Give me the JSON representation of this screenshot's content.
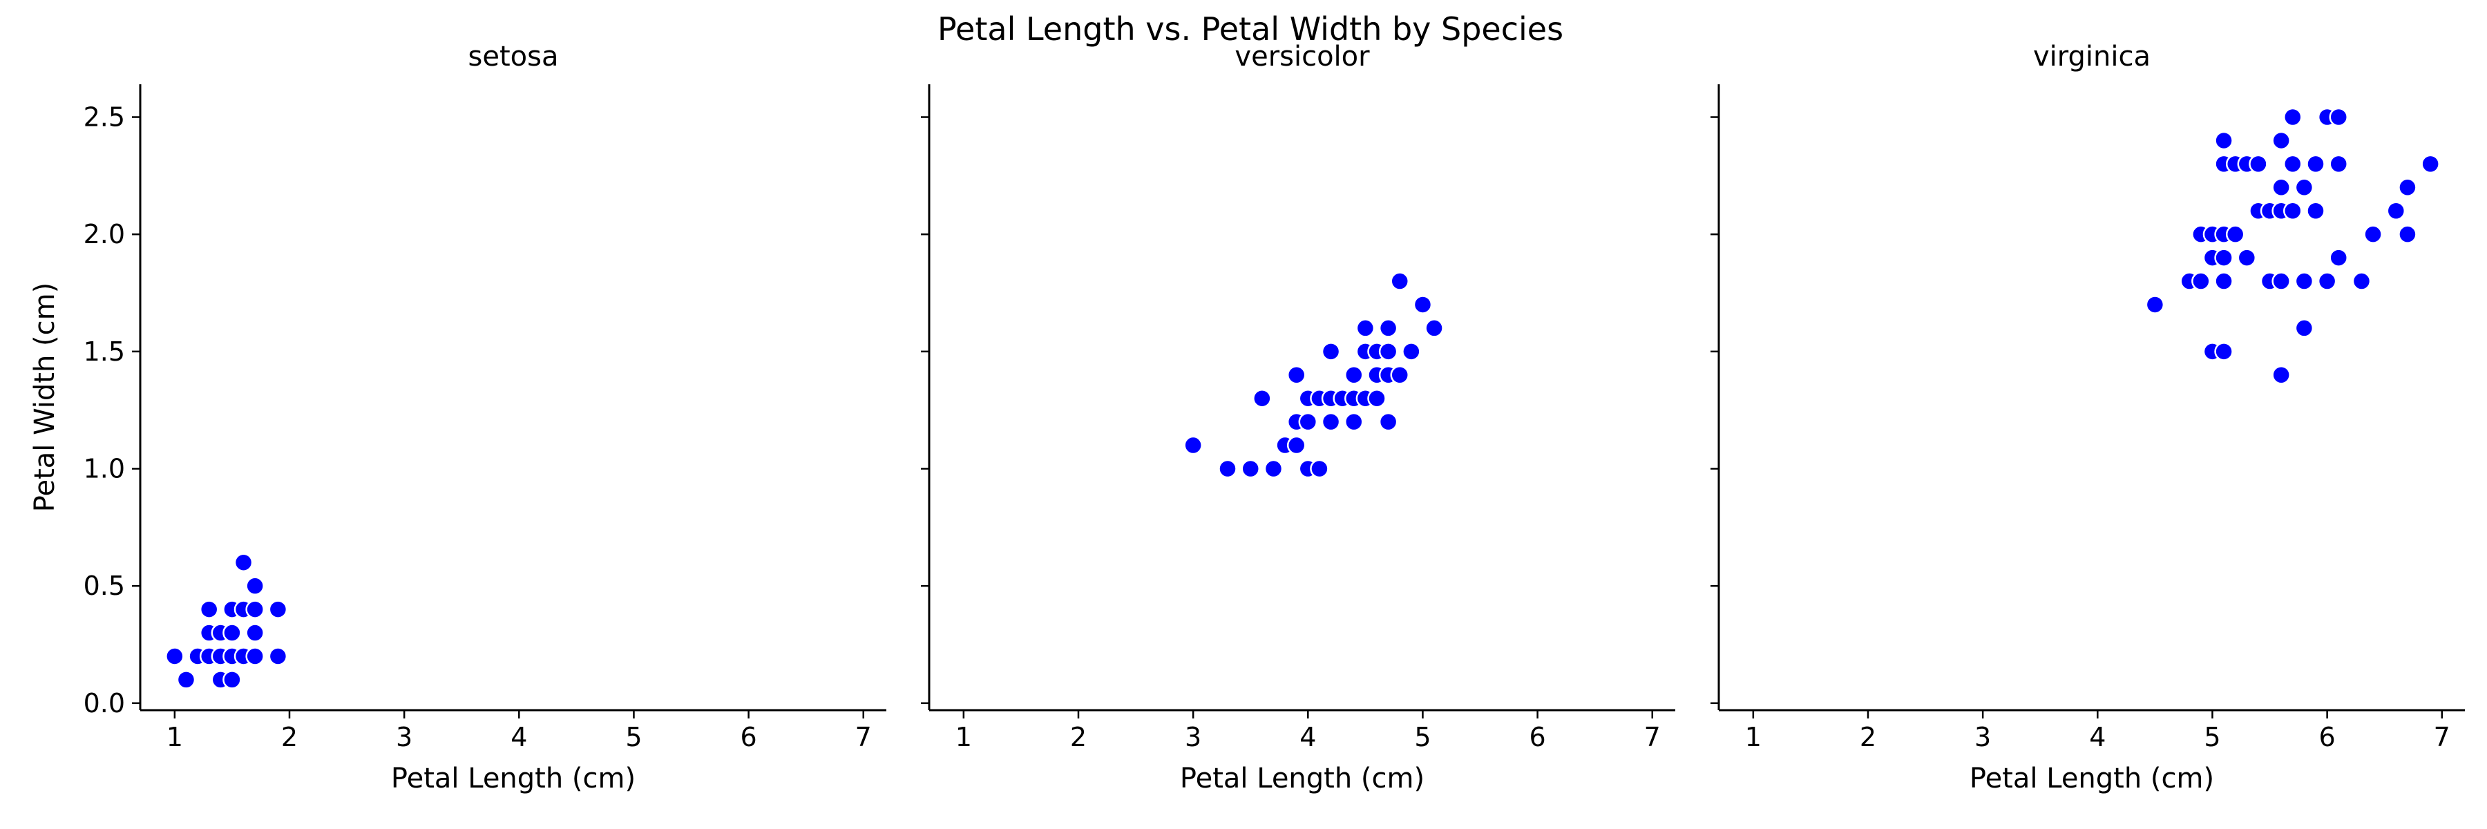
{
  "title": "Petal Length vs. Petal Width by Species",
  "colors": {
    "point": "#0000ff",
    "point_edge": "#ffffff",
    "axis": "#000000"
  },
  "chart_data": {
    "type": "scatter",
    "title": "Petal Length vs. Petal Width by Species",
    "xlabel": "Petal Length (cm)",
    "ylabel": "Petal Width (cm)",
    "xlim": [
      0.7,
      7.2
    ],
    "ylim": [
      -0.03,
      2.64
    ],
    "x_ticks": [
      "1",
      "2",
      "3",
      "4",
      "5",
      "6",
      "7"
    ],
    "y_ticks": [
      "0.0",
      "0.5",
      "1.0",
      "1.5",
      "2.0",
      "2.5"
    ],
    "shared_axes": true,
    "grid": false,
    "legend": "none",
    "facets": [
      {
        "name": "setosa",
        "points": [
          [
            1.0,
            0.2
          ],
          [
            1.1,
            0.1
          ],
          [
            1.2,
            0.2
          ],
          [
            1.3,
            0.2
          ],
          [
            1.3,
            0.3
          ],
          [
            1.3,
            0.4
          ],
          [
            1.4,
            0.1
          ],
          [
            1.4,
            0.2
          ],
          [
            1.4,
            0.3
          ],
          [
            1.5,
            0.1
          ],
          [
            1.5,
            0.2
          ],
          [
            1.5,
            0.3
          ],
          [
            1.5,
            0.4
          ],
          [
            1.6,
            0.2
          ],
          [
            1.6,
            0.4
          ],
          [
            1.6,
            0.6
          ],
          [
            1.7,
            0.2
          ],
          [
            1.7,
            0.3
          ],
          [
            1.7,
            0.4
          ],
          [
            1.7,
            0.5
          ],
          [
            1.9,
            0.2
          ],
          [
            1.9,
            0.4
          ]
        ]
      },
      {
        "name": "versicolor",
        "points": [
          [
            3.0,
            1.1
          ],
          [
            3.3,
            1.0
          ],
          [
            3.5,
            1.0
          ],
          [
            3.6,
            1.3
          ],
          [
            3.7,
            1.0
          ],
          [
            3.8,
            1.1
          ],
          [
            3.9,
            1.1
          ],
          [
            3.9,
            1.2
          ],
          [
            3.9,
            1.4
          ],
          [
            4.0,
            1.0
          ],
          [
            4.0,
            1.2
          ],
          [
            4.0,
            1.3
          ],
          [
            4.1,
            1.0
          ],
          [
            4.1,
            1.3
          ],
          [
            4.2,
            1.2
          ],
          [
            4.2,
            1.3
          ],
          [
            4.2,
            1.5
          ],
          [
            4.3,
            1.3
          ],
          [
            4.4,
            1.2
          ],
          [
            4.4,
            1.3
          ],
          [
            4.4,
            1.4
          ],
          [
            4.5,
            1.3
          ],
          [
            4.5,
            1.5
          ],
          [
            4.5,
            1.6
          ],
          [
            4.6,
            1.3
          ],
          [
            4.6,
            1.4
          ],
          [
            4.6,
            1.5
          ],
          [
            4.7,
            1.2
          ],
          [
            4.7,
            1.4
          ],
          [
            4.7,
            1.5
          ],
          [
            4.7,
            1.6
          ],
          [
            4.8,
            1.4
          ],
          [
            4.8,
            1.8
          ],
          [
            4.9,
            1.5
          ],
          [
            5.0,
            1.7
          ],
          [
            5.1,
            1.6
          ]
        ]
      },
      {
        "name": "virginica",
        "points": [
          [
            4.5,
            1.7
          ],
          [
            4.8,
            1.8
          ],
          [
            4.9,
            1.8
          ],
          [
            4.9,
            2.0
          ],
          [
            5.0,
            1.5
          ],
          [
            5.0,
            1.9
          ],
          [
            5.0,
            2.0
          ],
          [
            5.1,
            1.5
          ],
          [
            5.1,
            1.8
          ],
          [
            5.1,
            1.9
          ],
          [
            5.1,
            2.0
          ],
          [
            5.1,
            2.3
          ],
          [
            5.1,
            2.4
          ],
          [
            5.2,
            2.0
          ],
          [
            5.2,
            2.3
          ],
          [
            5.3,
            1.9
          ],
          [
            5.3,
            2.3
          ],
          [
            5.4,
            2.1
          ],
          [
            5.4,
            2.3
          ],
          [
            5.5,
            1.8
          ],
          [
            5.5,
            2.1
          ],
          [
            5.6,
            1.4
          ],
          [
            5.6,
            1.8
          ],
          [
            5.6,
            2.1
          ],
          [
            5.6,
            2.2
          ],
          [
            5.6,
            2.4
          ],
          [
            5.7,
            2.1
          ],
          [
            5.7,
            2.3
          ],
          [
            5.7,
            2.5
          ],
          [
            5.8,
            1.6
          ],
          [
            5.8,
            1.8
          ],
          [
            5.8,
            2.2
          ],
          [
            5.9,
            2.1
          ],
          [
            5.9,
            2.3
          ],
          [
            6.0,
            1.8
          ],
          [
            6.0,
            2.5
          ],
          [
            6.1,
            1.9
          ],
          [
            6.1,
            2.3
          ],
          [
            6.1,
            2.5
          ],
          [
            6.3,
            1.8
          ],
          [
            6.4,
            2.0
          ],
          [
            6.6,
            2.1
          ],
          [
            6.7,
            2.0
          ],
          [
            6.7,
            2.2
          ],
          [
            6.9,
            2.3
          ]
        ]
      }
    ]
  }
}
